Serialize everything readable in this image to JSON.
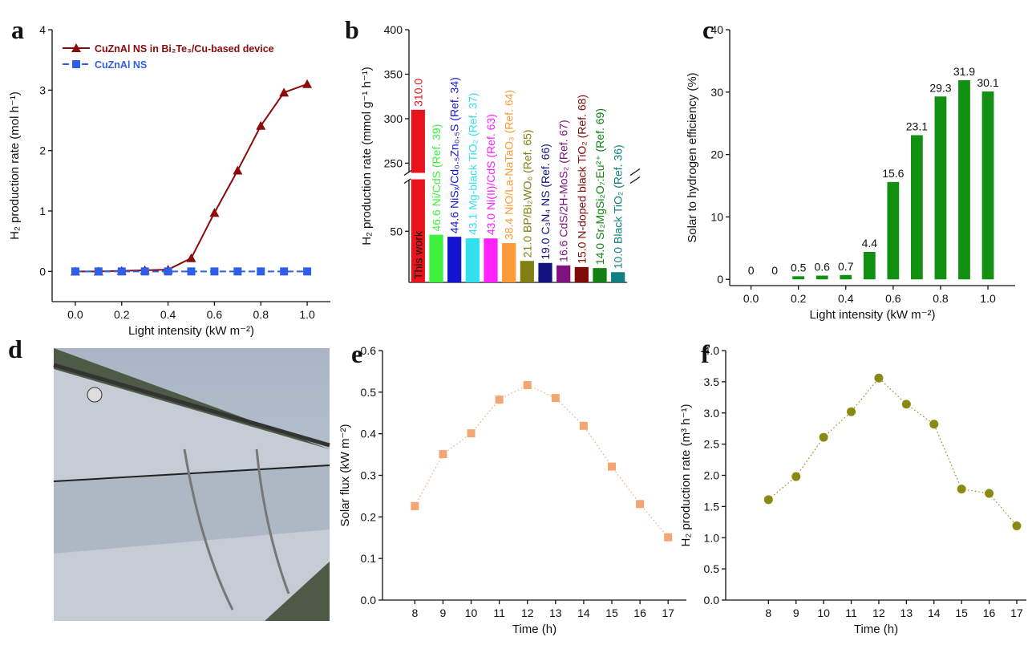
{
  "photo": {
    "panel": "d"
  },
  "chart_data": [
    {
      "type": "line",
      "panel": "a",
      "xlabel": "Light intensity (kW m⁻²)",
      "ylabel": "H₂ production rate (mol h⁻¹)",
      "x": [
        0,
        0.1,
        0.2,
        0.3,
        0.4,
        0.5,
        0.6,
        0.7,
        0.8,
        0.9,
        1.0
      ],
      "series": [
        {
          "name": "CuZnAl NS in Bi₂Te₃/Cu-based device",
          "color": "#8b0a0a",
          "marker": "triangle",
          "values": [
            0,
            0,
            0.01,
            0.02,
            0.03,
            0.22,
            0.97,
            1.67,
            2.41,
            2.96,
            3.1
          ]
        },
        {
          "name": "CuZnAl NS",
          "color": "#2f5fe8",
          "marker": "square",
          "line_style": "dashed",
          "values": [
            0,
            0,
            0,
            0,
            0,
            0,
            0,
            0,
            0,
            0,
            0
          ]
        }
      ],
      "xlim": [
        -0.1,
        1.1
      ],
      "xticks": [
        {
          "value": 0,
          "label": "0.0"
        },
        0.2,
        0.4,
        0.6,
        0.8,
        {
          "value": 1,
          "label": "1.0"
        }
      ],
      "ylim": [
        -0.5,
        4
      ],
      "yticks": [
        0,
        1,
        2,
        3,
        4
      ],
      "legend": "upper left"
    },
    {
      "type": "bar",
      "panel": "b",
      "ylabel": "H₂ production rate (mmol g⁻¹ h⁻¹)",
      "categories": [
        "This work",
        "Ni/CdS (Ref. 39)",
        "NiSₓ/Cd₀.₅Zn₀.₅S (Ref. 34)",
        "Mg-black TiO₂ (Ref. 37)",
        "Ni(II)/CdS (Ref. 63)",
        "NiO/La-NaTaO₃ (Ref. 64)",
        "BP/Bi₂WO₆ (Ref. 65)",
        "C₃N₄ NS (Ref. 66)",
        "CdS/2H-MoS₂ (Ref. 67)",
        "N-doped black TiO₂ (Ref. 68)",
        "Sr₂MgSi₂O₇:Eu²⁺ (Ref. 69)",
        "Black TiO₂ (Ref. 36)"
      ],
      "values": [
        310,
        46.6,
        44.6,
        43.1,
        43.0,
        38.4,
        21.0,
        19.0,
        16.6,
        15.0,
        14.0,
        10.0
      ],
      "value_labels": [
        "310.0",
        "46.6",
        "44.6",
        "43.1",
        "43.0",
        "38.4",
        "21.0",
        "19.0",
        "16.6",
        "15.0",
        "14.0",
        "10.0"
      ],
      "colors": [
        "#e8141b",
        "#3ff03f",
        "#1414d0",
        "#33e0f0",
        "#ff22ff",
        "#ff9a3a",
        "#7f7f12",
        "#12127f",
        "#7f127f",
        "#7f0a0a",
        "#128012",
        "#128080"
      ],
      "ylim": [
        0,
        400
      ],
      "ybreak": [
        100,
        240
      ],
      "yticks": [
        50,
        250,
        300,
        350,
        400
      ]
    },
    {
      "type": "bar",
      "panel": "c",
      "xlabel": "Light intensity (kW m⁻²)",
      "ylabel": "Solar to hydrogen efficiency (%)",
      "x": [
        0,
        0.1,
        0.2,
        0.3,
        0.4,
        0.5,
        0.6,
        0.7,
        0.8,
        0.9,
        1.0
      ],
      "values": [
        0,
        0,
        0.5,
        0.6,
        0.7,
        4.4,
        15.6,
        23.1,
        29.3,
        31.9,
        30.1
      ],
      "color": "#129012",
      "xlim": [
        -0.09,
        1.115
      ],
      "xticks": [
        {
          "value": 0,
          "label": "0.0"
        },
        0.2,
        0.4,
        0.6,
        0.8,
        {
          "value": 1,
          "label": "1.0"
        }
      ],
      "ylim": [
        -1,
        40
      ],
      "yticks": [
        0,
        10,
        20,
        30,
        40
      ]
    },
    {
      "type": "scatter",
      "panel": "e",
      "xlabel": "Time (h)",
      "ylabel": "Solar flux (kW m⁻²)",
      "x": [
        8,
        9,
        10,
        11,
        12,
        13,
        14,
        15,
        16,
        17
      ],
      "values": [
        0.226,
        0.351,
        0.401,
        0.482,
        0.517,
        0.486,
        0.419,
        0.321,
        0.231,
        0.151
      ],
      "color": "#f4a672",
      "marker": "square",
      "line_style": "dotted",
      "xlim": [
        6.85,
        17.65
      ],
      "xticks": [
        8,
        9,
        10,
        11,
        12,
        13,
        14,
        15,
        16,
        17
      ],
      "ylim": [
        0,
        0.6
      ],
      "yticks": [
        {
          "value": 0,
          "label": "0.0"
        },
        0.1,
        0.2,
        0.3,
        0.4,
        0.5,
        0.6
      ]
    },
    {
      "type": "scatter",
      "panel": "f",
      "xlabel": "Time (h)",
      "ylabel": "H₂ production rate (m³ h⁻¹)",
      "x": [
        8,
        9,
        10,
        11,
        12,
        13,
        14,
        15,
        16,
        17
      ],
      "values": [
        1.61,
        1.98,
        2.61,
        3.02,
        3.56,
        3.14,
        2.82,
        1.78,
        1.71,
        1.19
      ],
      "color": "#8a8a12",
      "marker": "circle",
      "line_style": "dotted",
      "xlim": [
        6.45,
        17.35
      ],
      "xticks": [
        8,
        9,
        10,
        11,
        12,
        13,
        14,
        15,
        16,
        17
      ],
      "ylim": [
        0,
        4
      ],
      "yticks": [
        {
          "value": 0,
          "label": "0.0"
        },
        {
          "value": 0.5,
          "label": "0.5"
        },
        {
          "value": 1,
          "label": "1.0"
        },
        {
          "value": 1.5,
          "label": "1.5"
        },
        {
          "value": 2,
          "label": "2.0"
        },
        {
          "value": 2.5,
          "label": "2.5"
        },
        {
          "value": 3,
          "label": "3.0"
        },
        {
          "value": 3.5,
          "label": "3.5"
        },
        {
          "value": 4,
          "label": "4.0"
        }
      ]
    }
  ]
}
